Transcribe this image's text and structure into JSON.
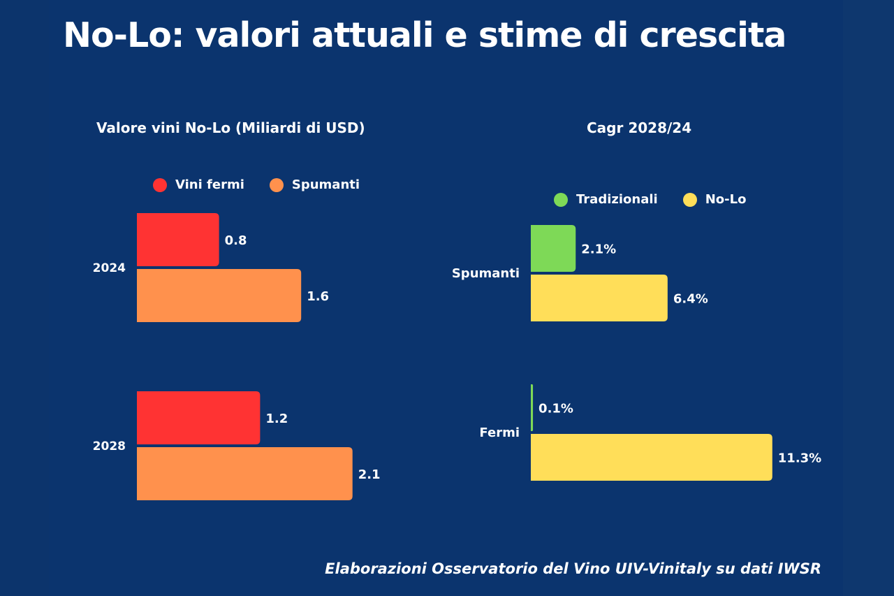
{
  "title": "No-Lo: valori attuali e stime di crescita",
  "source": "Elaborazioni Osservatorio del Vino UIV-Vinitaly su dati IWSR",
  "colors": {
    "background": "#0b346e",
    "vini_fermi": "#ff3333",
    "spumanti": "#ff914d",
    "tradizionali": "#7ed957",
    "no_lo": "#ffde59"
  },
  "chart_data": [
    {
      "type": "bar",
      "orientation": "horizontal",
      "title": "Valore vini No-Lo (Miliardi di USD)",
      "categories": [
        "2024",
        "2028"
      ],
      "series": [
        {
          "name": "Vini fermi",
          "values": [
            0.8,
            1.2
          ],
          "labels": [
            "0.8",
            "1.2"
          ],
          "color": "#ff3333"
        },
        {
          "name": "Spumanti",
          "values": [
            1.6,
            2.1
          ],
          "labels": [
            "1.6",
            "2.1"
          ],
          "color": "#ff914d"
        }
      ],
      "legend": "top",
      "xlabel": "",
      "ylabel": "",
      "xlim": [
        0,
        2.1
      ],
      "grid": false
    },
    {
      "type": "bar",
      "orientation": "horizontal",
      "title": "Cagr 2028/24",
      "categories": [
        "Spumanti",
        "Fermi"
      ],
      "series": [
        {
          "name": "Tradizionali",
          "values": [
            2.1,
            0.1
          ],
          "labels": [
            "2.1%",
            "0.1%"
          ],
          "color": "#7ed957"
        },
        {
          "name": "No-Lo",
          "values": [
            6.4,
            11.3
          ],
          "labels": [
            "6.4%",
            "11.3%"
          ],
          "color": "#ffde59"
        }
      ],
      "legend": "top",
      "xlabel": "",
      "ylabel": "",
      "xlim": [
        0,
        11.3
      ],
      "grid": false
    }
  ]
}
